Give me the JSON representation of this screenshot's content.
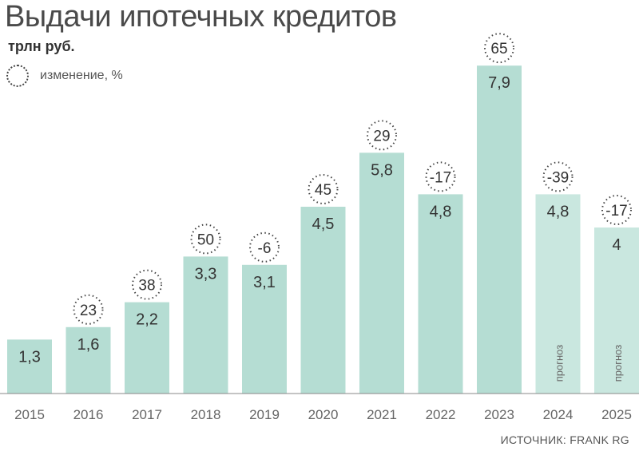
{
  "title": "Выдачи ипотечных кредитов",
  "unit": "трлн руб.",
  "legend": {
    "change_label": "изменение, %"
  },
  "source": "ИСТОЧНИК: FRANK RG",
  "colors": {
    "bar": "#b5ddd3",
    "bar_forecast": "#c9e7df",
    "axis": "#888888",
    "text": "#333333"
  },
  "chart_data": {
    "type": "bar",
    "title": "Выдачи ипотечных кредитов",
    "ylabel": "трлн руб.",
    "categories": [
      "2015",
      "2016",
      "2017",
      "2018",
      "2019",
      "2020",
      "2021",
      "2022",
      "2023",
      "2024",
      "2025"
    ],
    "value_labels": [
      "1,3",
      "1,6",
      "2,2",
      "3,3",
      "3,1",
      "4,5",
      "5,8",
      "4,8",
      "7,9",
      "4,8",
      "4"
    ],
    "values": [
      1.3,
      1.6,
      2.2,
      3.3,
      3.1,
      4.5,
      5.8,
      4.8,
      7.9,
      4.8,
      4.0
    ],
    "change_pct": [
      null,
      23,
      38,
      50,
      -6,
      45,
      29,
      -17,
      65,
      -39,
      -17
    ],
    "forecast": [
      false,
      false,
      false,
      false,
      false,
      false,
      false,
      false,
      false,
      true,
      true
    ],
    "forecast_label": "прогноз",
    "ylim": [
      0,
      8
    ],
    "grid": false
  }
}
